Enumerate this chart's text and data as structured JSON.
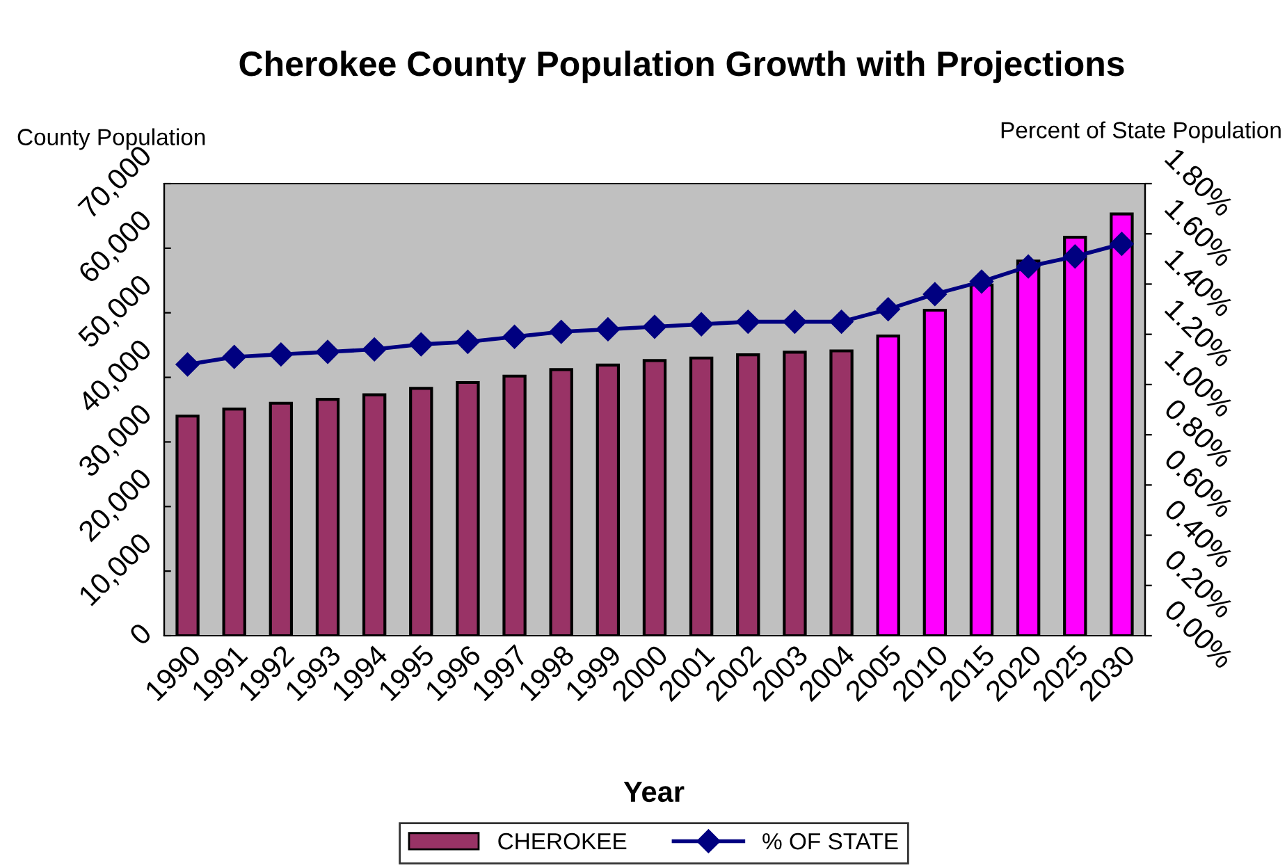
{
  "chart_data": {
    "type": "bar",
    "title": "Cherokee County Population Growth with Projections",
    "xlabel": "Year",
    "ylabel": "County Population",
    "y2label": "Percent of State Population",
    "categories": [
      "1990",
      "1991",
      "1992",
      "1993",
      "1994",
      "1995",
      "1996",
      "1997",
      "1998",
      "1999",
      "2000",
      "2001",
      "2002",
      "2003",
      "2004",
      "2005",
      "2010",
      "2015",
      "2020",
      "2025",
      "2030"
    ],
    "series": [
      {
        "name": "CHEROKEE",
        "color": "#993366",
        "colors": [
          "#993366",
          "#993366",
          "#993366",
          "#993366",
          "#993366",
          "#993366",
          "#993366",
          "#993366",
          "#993366",
          "#993366",
          "#993366",
          "#993366",
          "#993366",
          "#993366",
          "#993366",
          "#ff00ff",
          "#ff00ff",
          "#ff00ff",
          "#ff00ff",
          "#ff00ff",
          "#ff00ff"
        ],
        "values": [
          34000,
          35100,
          36000,
          36600,
          37300,
          38300,
          39200,
          40200,
          41200,
          41900,
          42600,
          43000,
          43500,
          43900,
          44100,
          46400,
          50400,
          54300,
          58000,
          61700,
          65300
        ]
      },
      {
        "name": "% OF STATE",
        "type": "line",
        "axis": "y2",
        "color": "#000080",
        "marker": "diamond",
        "values": [
          1.08,
          1.11,
          1.12,
          1.13,
          1.14,
          1.16,
          1.17,
          1.19,
          1.21,
          1.22,
          1.23,
          1.24,
          1.25,
          1.25,
          1.25,
          1.3,
          1.36,
          1.41,
          1.47,
          1.51,
          1.56
        ]
      }
    ],
    "ylim": [
      0,
      70000
    ],
    "yticks": [
      {
        "value": 0,
        "label": "0"
      },
      {
        "value": 10000,
        "label": "10,000"
      },
      {
        "value": 20000,
        "label": "20,000"
      },
      {
        "value": 30000,
        "label": "30,000"
      },
      {
        "value": 40000,
        "label": "40,000"
      },
      {
        "value": 50000,
        "label": "50,000"
      },
      {
        "value": 60000,
        "label": "60,000"
      },
      {
        "value": 70000,
        "label": "70,000"
      }
    ],
    "y2lim": [
      0,
      1.8
    ],
    "y2ticks": [
      {
        "value": 0,
        "label": "0.00%"
      },
      {
        "value": 0.2,
        "label": "0.20%"
      },
      {
        "value": 0.4,
        "label": "0.40%"
      },
      {
        "value": 0.6,
        "label": "0.60%"
      },
      {
        "value": 0.8,
        "label": "0.80%"
      },
      {
        "value": 1.0,
        "label": "1.00%"
      },
      {
        "value": 1.2,
        "label": "1.20%"
      },
      {
        "value": 1.4,
        "label": "1.40%"
      },
      {
        "value": 1.6,
        "label": "1.60%"
      },
      {
        "value": 1.8,
        "label": "1.80%"
      }
    ],
    "grid": false,
    "legend": "bottom"
  }
}
